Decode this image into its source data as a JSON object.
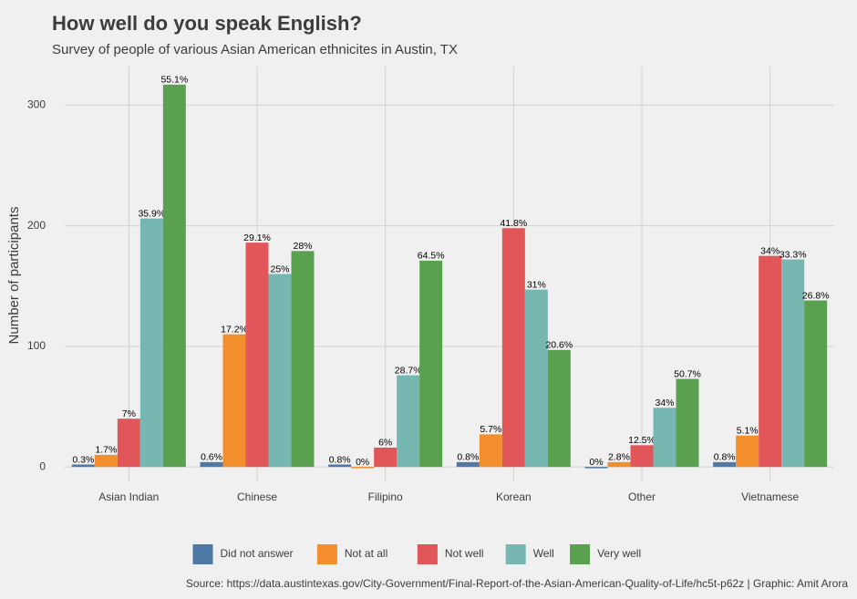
{
  "chart_data": {
    "type": "bar",
    "title": "How well do you speak English?",
    "subtitle": "Survey of people of various Asian American ethnicites in Austin, TX",
    "y_label": "Number of participants",
    "source": "Source: https://data.austintexas.gov/City-Government/Final-Report-of-the-Asian-American-Quality-of-Life/hc5t-p62z | Graphic: Amit Arora",
    "categories": [
      "Asian Indian",
      "Chinese",
      "Filipino",
      "Korean",
      "Other",
      "Vietnamese"
    ],
    "series": [
      {
        "name": "Did not answer",
        "color": "#4e79a7",
        "values": [
          2,
          4,
          2,
          4,
          0,
          4
        ],
        "percent_labels": [
          "0.3%",
          "0.6%",
          "0.8%",
          "0.8%",
          "0%",
          "0.8%"
        ]
      },
      {
        "name": "Not at all",
        "color": "#f28e2b",
        "values": [
          10,
          110,
          0,
          27,
          4,
          26
        ],
        "percent_labels": [
          "1.7%",
          "17.2%",
          "0%",
          "5.7%",
          "2.8%",
          "5.1%"
        ]
      },
      {
        "name": "Not well",
        "color": "#e15759",
        "values": [
          40,
          186,
          16,
          198,
          18,
          175
        ],
        "percent_labels": [
          "7%",
          "29.1%",
          "6%",
          "41.8%",
          "12.5%",
          "34%"
        ]
      },
      {
        "name": "Well",
        "color": "#76b7b2",
        "values": [
          206,
          160,
          76,
          147,
          49,
          172
        ],
        "percent_labels": [
          "35.9%",
          "25%",
          "28.7%",
          "31%",
          "34%",
          "33.3%"
        ]
      },
      {
        "name": "Very well",
        "color": "#59a14f",
        "values": [
          317,
          179,
          171,
          97,
          73,
          138
        ],
        "percent_labels": [
          "55.1%",
          "28%",
          "64.5%",
          "20.6%",
          "50.7%",
          "26.8%"
        ]
      }
    ],
    "ylim": [
      -12,
      332
    ],
    "yticks": [
      0,
      100,
      200,
      300
    ],
    "grid": true,
    "legend": "bottom"
  }
}
